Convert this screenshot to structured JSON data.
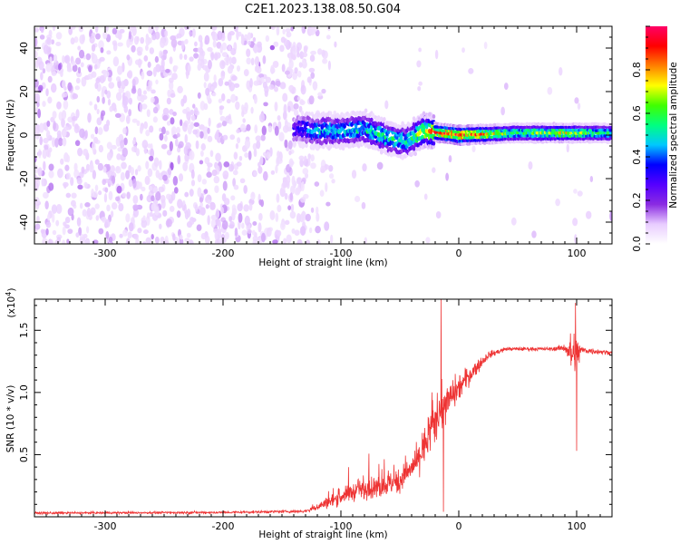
{
  "title": "C2E1.2023.138.08.50.G04",
  "chart_data": [
    {
      "type": "heatmap",
      "xlabel": "Height of straight line (km)",
      "ylabel": "Frequency (Hz)",
      "xlim": [
        -360,
        130
      ],
      "ylim": [
        -50,
        50
      ],
      "xticks": [
        -300,
        -200,
        -100,
        0,
        100
      ],
      "yticks": [
        -40,
        -20,
        0,
        20,
        40
      ],
      "colorbar": {
        "label": "Normalized spectral amplitude",
        "range": [
          0.0,
          1.0
        ],
        "ticks": [
          0.0,
          0.2,
          0.4,
          0.6,
          0.8
        ],
        "colors": [
          "#ffffff",
          "#e8ccff",
          "#8a2be2",
          "#5500ff",
          "#0000ff",
          "#00c8ff",
          "#00ff80",
          "#40ff00",
          "#ffff00",
          "#ff8000",
          "#ff0000",
          "#ff0066"
        ]
      },
      "ridge": [
        {
          "x": -140,
          "freq": 3,
          "amp": 0.3
        },
        {
          "x": -120,
          "freq": 2,
          "amp": 0.45
        },
        {
          "x": -100,
          "freq": 2,
          "amp": 0.5
        },
        {
          "x": -80,
          "freq": 3,
          "amp": 0.5
        },
        {
          "x": -60,
          "freq": -1,
          "amp": 0.55
        },
        {
          "x": -45,
          "freq": -3,
          "amp": 0.5
        },
        {
          "x": -30,
          "freq": 2,
          "amp": 0.7
        },
        {
          "x": -15,
          "freq": 1,
          "amp": 0.85
        },
        {
          "x": 0,
          "freq": 0,
          "amp": 0.9
        },
        {
          "x": 50,
          "freq": 1,
          "amp": 0.55
        },
        {
          "x": 90,
          "freq": 1,
          "amp": 0.7
        },
        {
          "x": 130,
          "freq": 1,
          "amp": 0.5
        }
      ]
    },
    {
      "type": "line",
      "xlabel": "Height of straight line (km)",
      "ylabel": "SNR (10 * v/v)",
      "yscale_label": "(x10",
      "yscale_exp": "4",
      "yscale_close": ")",
      "xlim": [
        -360,
        130
      ],
      "ylim": [
        0,
        17500
      ],
      "xticks": [
        -300,
        -200,
        -100,
        0,
        100
      ],
      "yticks": [
        5000,
        10000,
        15000
      ],
      "ytick_labels": [
        "0.5",
        "1.0",
        "1.5"
      ],
      "color": "#ee3333",
      "envelope": [
        {
          "x": -360,
          "mean": 300,
          "noise": 150
        },
        {
          "x": -200,
          "mean": 350,
          "noise": 150
        },
        {
          "x": -130,
          "mean": 450,
          "noise": 200
        },
        {
          "x": -110,
          "mean": 1200,
          "noise": 800
        },
        {
          "x": -90,
          "mean": 2000,
          "noise": 1200
        },
        {
          "x": -70,
          "mean": 2300,
          "noise": 1400
        },
        {
          "x": -50,
          "mean": 2900,
          "noise": 1600
        },
        {
          "x": -35,
          "mean": 4500,
          "noise": 2000
        },
        {
          "x": -25,
          "mean": 6500,
          "noise": 2600
        },
        {
          "x": -15,
          "mean": 8500,
          "noise": 3000
        },
        {
          "x": -5,
          "mean": 9800,
          "noise": 2200
        },
        {
          "x": 10,
          "mean": 11500,
          "noise": 1200
        },
        {
          "x": 25,
          "mean": 13000,
          "noise": 500
        },
        {
          "x": 40,
          "mean": 13500,
          "noise": 250
        },
        {
          "x": 80,
          "mean": 13500,
          "noise": 250
        },
        {
          "x": 90,
          "mean": 13600,
          "noise": 500
        },
        {
          "x": 97,
          "mean": 13000,
          "noise": 3500
        },
        {
          "x": 105,
          "mean": 13400,
          "noise": 500
        },
        {
          "x": 130,
          "mean": 13200,
          "noise": 250
        }
      ],
      "spikes": [
        {
          "x": -15,
          "y": 17500
        },
        {
          "x": -13,
          "y": 400
        },
        {
          "x": 99,
          "y": 17200
        },
        {
          "x": 100,
          "y": 5300
        }
      ]
    }
  ]
}
